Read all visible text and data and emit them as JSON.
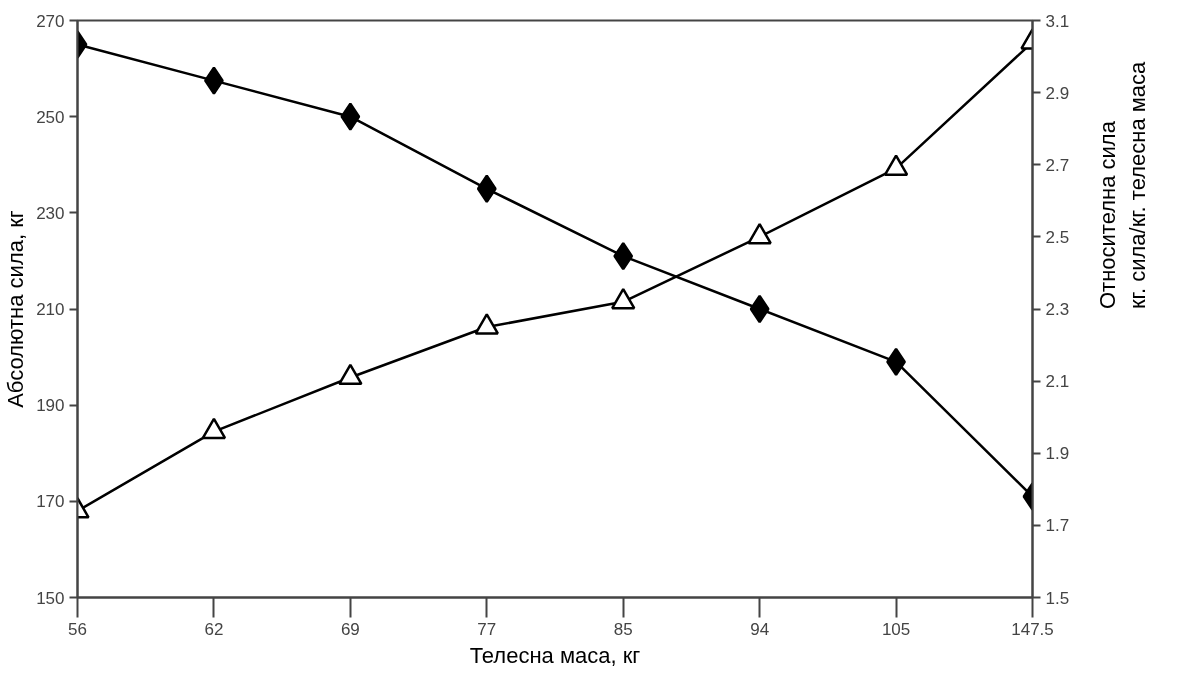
{
  "chart_data": {
    "type": "line",
    "xlabel": "Телесна маса, кг",
    "ylabel": "Абсолютна сила, кг",
    "y2label": "Относителна сила\nкг. сила/кг. телесна маса",
    "categories": [
      "56",
      "62",
      "69",
      "77",
      "85",
      "94",
      "105",
      "147.5"
    ],
    "series": [
      {
        "color": "#000000",
        "marker": "diamond",
        "values": [
          265,
          257.5,
          250,
          235,
          221,
          210,
          199,
          171
        ]
      },
      {
        "color": "#000000",
        "marker": "triangle",
        "axis": "y2",
        "values": [
          1.74,
          1.96,
          2.11,
          2.25,
          2.32,
          2.5,
          2.69,
          3.04
        ]
      }
    ],
    "ylim": [
      150,
      270
    ],
    "yticks": [
      150,
      170,
      190,
      210,
      230,
      250,
      270
    ],
    "y2lim": [
      1.5,
      3.1
    ],
    "y2ticks": [
      1.5,
      1.7,
      1.9,
      2.1,
      2.3,
      2.5,
      2.7,
      2.9,
      3.1
    ],
    "grid": false
  }
}
